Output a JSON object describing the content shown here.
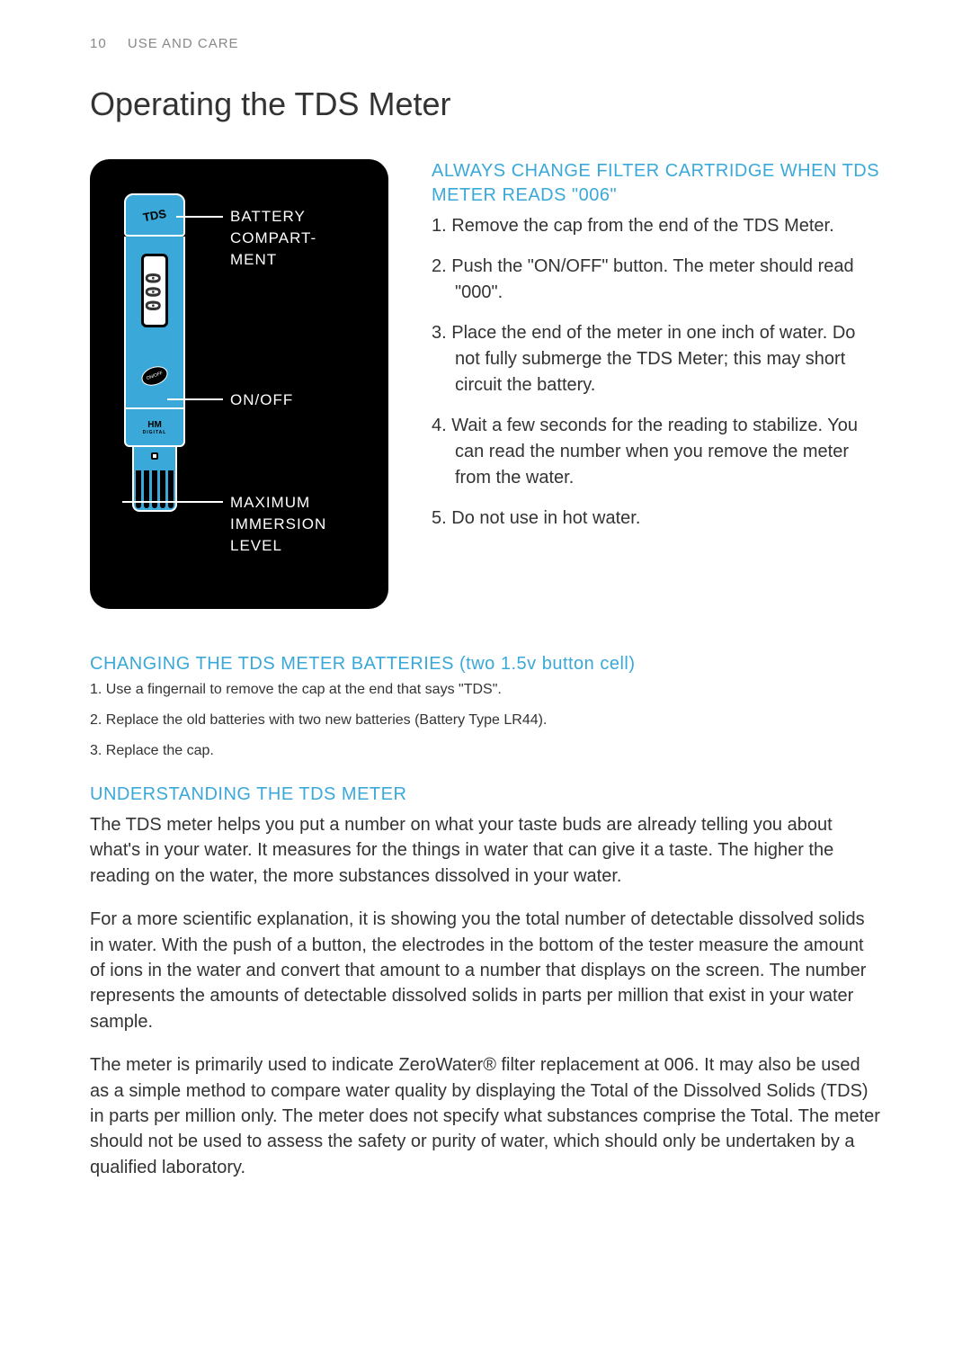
{
  "page": {
    "number": "10",
    "section": "USE AND CARE"
  },
  "title": "Operating the TDS Meter",
  "diagram": {
    "labels": {
      "battery": "BATTERY COMPART-MENT",
      "onoff": "ON/OFF",
      "immersion": "MAXIMUM IMMERSION LEVEL"
    },
    "cap_text": "TDS",
    "lcd_text": "000",
    "onoff_text": "ON/OFF",
    "brand": "HM",
    "brand_sub": "DIGITAL",
    "colors": {
      "box_bg": "#000000",
      "device_blue": "#3aa8d8",
      "outline": "#ffffff"
    }
  },
  "filter_heading": "ALWAYS CHANGE FILTER CARTRIDGE WHEN TDS METER READS \"006\"",
  "filter_steps": [
    "Remove the cap from the end of the TDS Meter.",
    "Push the \"ON/OFF\" button. The meter should read \"000\".",
    "Place the end of the meter in one inch of water. Do not fully submerge the TDS Meter; this may short circuit the battery.",
    "Wait a few seconds for the reading to stabilize. You can read the number when you remove the meter from the water.",
    "Do not use in hot water."
  ],
  "batteries_heading": "CHANGING THE TDS METER BATTERIES (two 1.5v button cell)",
  "batteries_steps": [
    "Use a fingernail to remove the cap at the end that says \"TDS\".",
    "Replace the old batteries with two new batteries (Battery Type LR44).",
    "Replace the cap."
  ],
  "understanding_heading": "UNDERSTANDING THE TDS METER",
  "understanding_paras": [
    "The TDS meter helps you put a number on what your taste buds are already telling you about what's in your water. It measures for the things in water that can give it a taste. The higher the reading on the water, the more substances dissolved in your water.",
    "For a more scientific explanation, it is showing you the total number of detectable dissolved solids in water. With the push of a button, the electrodes in the bottom of the tester measure the amount of ions in the water and convert that amount to a number that displays on the screen. The number represents the amounts of detectable dissolved solids in parts per million that exist in your water sample.",
    "The meter is primarily used to indicate ZeroWater® filter replacement at 006. It may also be used as a simple method to compare water quality by displaying the Total of the Dissolved Solids (TDS) in parts per million only. The meter does not specify what substances comprise the Total. The meter should not be used to assess the safety or purity of water, which should only be undertaken by a qualified laboratory."
  ],
  "style": {
    "heading_color": "#3aa8d8",
    "body_color": "#333333",
    "header_color": "#888888",
    "bg": "#ffffff",
    "title_fontsize": 36,
    "body_fontsize": 20,
    "heading_fontsize": 20,
    "header_fontsize": 15
  }
}
